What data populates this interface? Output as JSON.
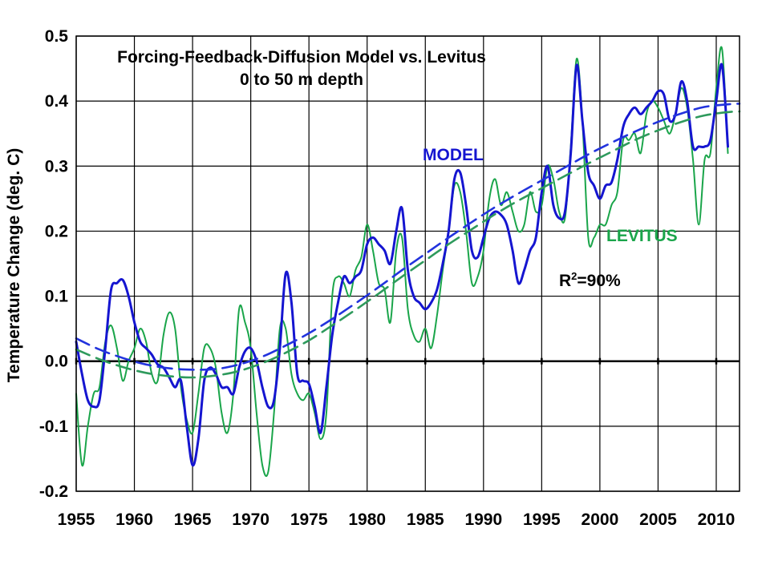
{
  "chart_data": {
    "type": "line",
    "title": "Forcing-Feedback-Diffusion Model vs. Levitus",
    "subtitle": "0 to 50 m depth",
    "ylabel": "Temperature Change (deg. C)",
    "xlabel": "",
    "xlim": [
      1955,
      2012
    ],
    "ylim": [
      -0.2,
      0.5
    ],
    "grid": true,
    "x_ticks": [
      1955,
      1960,
      1965,
      1970,
      1975,
      1980,
      1985,
      1990,
      1995,
      2000,
      2005,
      2010
    ],
    "x_tick_labels": [
      "1955",
      "1960",
      "1965",
      "1970",
      "1975",
      "1980",
      "1985",
      "1990",
      "1995",
      "2000",
      "2005",
      "2010"
    ],
    "y_ticks": [
      -0.2,
      -0.1,
      0.0,
      0.1,
      0.2,
      0.3,
      0.4,
      0.5
    ],
    "y_tick_labels": [
      "-0.2",
      "-0.1",
      "0.0",
      "0.1",
      "0.2",
      "0.3",
      "0.4",
      "0.5"
    ],
    "annotations": {
      "model_label": "MODEL",
      "levitus_label": "LEVITUS",
      "r2_label": "R",
      "r2_sup": "2",
      "r2_value": "=90%"
    },
    "colors": {
      "model": "#1515d0",
      "levitus": "#1aa54a",
      "model_trend": "#2233dd",
      "levitus_trend": "#2e9a5c",
      "zero_line": "#000000",
      "grid": "#000000"
    },
    "series": [
      {
        "name": "MODEL",
        "x": [
          1955.0,
          1955.5,
          1956.0,
          1956.5,
          1957.0,
          1957.5,
          1958.0,
          1958.5,
          1959.0,
          1959.5,
          1960.0,
          1960.5,
          1961.0,
          1961.5,
          1962.0,
          1962.5,
          1963.0,
          1963.5,
          1964.0,
          1964.5,
          1965.0,
          1965.5,
          1966.0,
          1966.5,
          1967.0,
          1967.5,
          1968.0,
          1968.5,
          1969.0,
          1969.5,
          1970.0,
          1970.5,
          1971.0,
          1971.5,
          1972.0,
          1972.5,
          1973.0,
          1973.5,
          1974.0,
          1974.5,
          1975.0,
          1975.5,
          1976.0,
          1976.5,
          1977.0,
          1977.5,
          1978.0,
          1978.5,
          1979.0,
          1979.5,
          1980.0,
          1980.5,
          1981.0,
          1981.5,
          1982.0,
          1982.5,
          1983.0,
          1983.5,
          1984.0,
          1984.5,
          1985.0,
          1985.5,
          1986.0,
          1986.5,
          1987.0,
          1987.5,
          1988.0,
          1988.5,
          1989.0,
          1989.5,
          1990.0,
          1990.5,
          1991.0,
          1991.5,
          1992.0,
          1992.5,
          1993.0,
          1993.5,
          1994.0,
          1994.5,
          1995.0,
          1995.5,
          1996.0,
          1996.5,
          1997.0,
          1997.5,
          1998.0,
          1998.5,
          1999.0,
          1999.5,
          2000.0,
          2000.5,
          2001.0,
          2001.5,
          2002.0,
          2002.5,
          2003.0,
          2003.5,
          2004.0,
          2004.5,
          2005.0,
          2005.5,
          2006.0,
          2006.5,
          2007.0,
          2007.5,
          2008.0,
          2008.5,
          2009.0,
          2009.5,
          2010.0,
          2010.5,
          2011.0
        ],
        "values": [
          0.03,
          -0.02,
          -0.06,
          -0.07,
          -0.06,
          0.02,
          0.11,
          0.12,
          0.125,
          0.1,
          0.06,
          0.03,
          0.02,
          0.01,
          -0.005,
          -0.01,
          -0.025,
          -0.04,
          -0.03,
          -0.1,
          -0.16,
          -0.12,
          -0.03,
          -0.01,
          -0.02,
          -0.04,
          -0.04,
          -0.05,
          -0.01,
          0.015,
          0.02,
          0.0,
          -0.04,
          -0.07,
          -0.06,
          0.02,
          0.135,
          0.09,
          -0.02,
          -0.03,
          -0.035,
          -0.07,
          -0.11,
          -0.04,
          0.04,
          0.09,
          0.13,
          0.12,
          0.13,
          0.14,
          0.18,
          0.19,
          0.18,
          0.17,
          0.15,
          0.2,
          0.235,
          0.14,
          0.1,
          0.09,
          0.08,
          0.09,
          0.11,
          0.15,
          0.2,
          0.28,
          0.29,
          0.24,
          0.17,
          0.16,
          0.19,
          0.22,
          0.23,
          0.225,
          0.21,
          0.17,
          0.12,
          0.14,
          0.17,
          0.19,
          0.26,
          0.3,
          0.24,
          0.22,
          0.23,
          0.32,
          0.455,
          0.37,
          0.29,
          0.27,
          0.25,
          0.27,
          0.275,
          0.31,
          0.36,
          0.38,
          0.39,
          0.38,
          0.39,
          0.4,
          0.415,
          0.41,
          0.37,
          0.38,
          0.43,
          0.4,
          0.33,
          0.33,
          0.33,
          0.34,
          0.4,
          0.455,
          0.33
        ]
      },
      {
        "name": "LEVITUS",
        "x": [
          1955.0,
          1955.5,
          1956.0,
          1956.5,
          1957.0,
          1957.5,
          1958.0,
          1958.5,
          1959.0,
          1959.5,
          1960.0,
          1960.5,
          1961.0,
          1961.5,
          1962.0,
          1962.5,
          1963.0,
          1963.5,
          1964.0,
          1964.5,
          1965.0,
          1965.5,
          1966.0,
          1966.5,
          1967.0,
          1967.5,
          1968.0,
          1968.5,
          1969.0,
          1969.5,
          1970.0,
          1970.5,
          1971.0,
          1971.5,
          1972.0,
          1972.5,
          1973.0,
          1973.5,
          1974.0,
          1974.5,
          1975.0,
          1975.5,
          1976.0,
          1976.5,
          1977.0,
          1977.5,
          1978.0,
          1978.5,
          1979.0,
          1979.5,
          1980.0,
          1980.5,
          1981.0,
          1981.5,
          1982.0,
          1982.5,
          1983.0,
          1983.5,
          1984.0,
          1984.5,
          1985.0,
          1985.5,
          1986.0,
          1986.5,
          1987.0,
          1987.5,
          1988.0,
          1988.5,
          1989.0,
          1989.5,
          1990.0,
          1990.5,
          1991.0,
          1991.5,
          1992.0,
          1992.5,
          1993.0,
          1993.5,
          1994.0,
          1994.5,
          1995.0,
          1995.5,
          1996.0,
          1996.5,
          1997.0,
          1997.5,
          1998.0,
          1998.5,
          1999.0,
          1999.5,
          2000.0,
          2000.5,
          2001.0,
          2001.5,
          2002.0,
          2002.5,
          2003.0,
          2003.5,
          2004.0,
          2004.5,
          2005.0,
          2005.5,
          2006.0,
          2006.5,
          2007.0,
          2007.5,
          2008.0,
          2008.5,
          2009.0,
          2009.5,
          2010.0,
          2010.5,
          2011.0
        ],
        "values": [
          -0.05,
          -0.16,
          -0.1,
          -0.05,
          -0.04,
          0.03,
          0.055,
          0.02,
          -0.03,
          0.0,
          0.02,
          0.05,
          0.03,
          -0.02,
          -0.03,
          0.04,
          0.075,
          0.05,
          -0.04,
          -0.09,
          -0.11,
          -0.05,
          0.02,
          0.02,
          -0.01,
          -0.08,
          -0.11,
          -0.05,
          0.08,
          0.06,
          0.02,
          -0.08,
          -0.16,
          -0.17,
          -0.08,
          0.05,
          0.05,
          -0.02,
          -0.05,
          -0.06,
          -0.05,
          -0.08,
          -0.12,
          -0.08,
          0.1,
          0.13,
          0.12,
          0.1,
          0.14,
          0.16,
          0.21,
          0.17,
          0.12,
          0.11,
          0.06,
          0.17,
          0.19,
          0.08,
          0.04,
          0.03,
          0.05,
          0.02,
          0.07,
          0.14,
          0.2,
          0.27,
          0.26,
          0.2,
          0.12,
          0.13,
          0.17,
          0.25,
          0.28,
          0.24,
          0.26,
          0.23,
          0.2,
          0.21,
          0.26,
          0.23,
          0.24,
          0.3,
          0.28,
          0.23,
          0.22,
          0.33,
          0.465,
          0.37,
          0.19,
          0.19,
          0.21,
          0.21,
          0.24,
          0.26,
          0.34,
          0.34,
          0.35,
          0.32,
          0.38,
          0.4,
          0.39,
          0.37,
          0.35,
          0.38,
          0.42,
          0.39,
          0.31,
          0.21,
          0.31,
          0.32,
          0.42,
          0.48,
          0.32
        ]
      },
      {
        "name": "MODEL trend",
        "x": [
          1955,
          1957,
          1959,
          1961,
          1963,
          1965,
          1967,
          1969,
          1971,
          1973,
          1975,
          1977,
          1979,
          1981,
          1983,
          1985,
          1987,
          1989,
          1991,
          1993,
          1995,
          1997,
          1999,
          2001,
          2003,
          2005,
          2007,
          2009,
          2011,
          2012
        ],
        "values": [
          0.035,
          0.018,
          0.005,
          -0.005,
          -0.011,
          -0.013,
          -0.012,
          -0.005,
          0.007,
          0.024,
          0.043,
          0.065,
          0.089,
          0.114,
          0.14,
          0.165,
          0.19,
          0.214,
          0.237,
          0.258,
          0.278,
          0.298,
          0.318,
          0.336,
          0.353,
          0.368,
          0.381,
          0.391,
          0.395,
          0.396
        ]
      },
      {
        "name": "LEVITUS trend",
        "x": [
          1955,
          1957,
          1959,
          1961,
          1963,
          1965,
          1967,
          1969,
          1971,
          1973,
          1975,
          1977,
          1979,
          1981,
          1983,
          1985,
          1987,
          1989,
          1991,
          1993,
          1995,
          1997,
          1999,
          2001,
          2003,
          2005,
          2007,
          2009,
          2011,
          2012
        ],
        "values": [
          0.018,
          0.003,
          -0.009,
          -0.018,
          -0.023,
          -0.025,
          -0.022,
          -0.015,
          -0.003,
          0.013,
          0.032,
          0.055,
          0.079,
          0.104,
          0.13,
          0.155,
          0.18,
          0.203,
          0.226,
          0.247,
          0.266,
          0.285,
          0.304,
          0.322,
          0.34,
          0.355,
          0.368,
          0.378,
          0.383,
          0.384
        ]
      }
    ]
  }
}
